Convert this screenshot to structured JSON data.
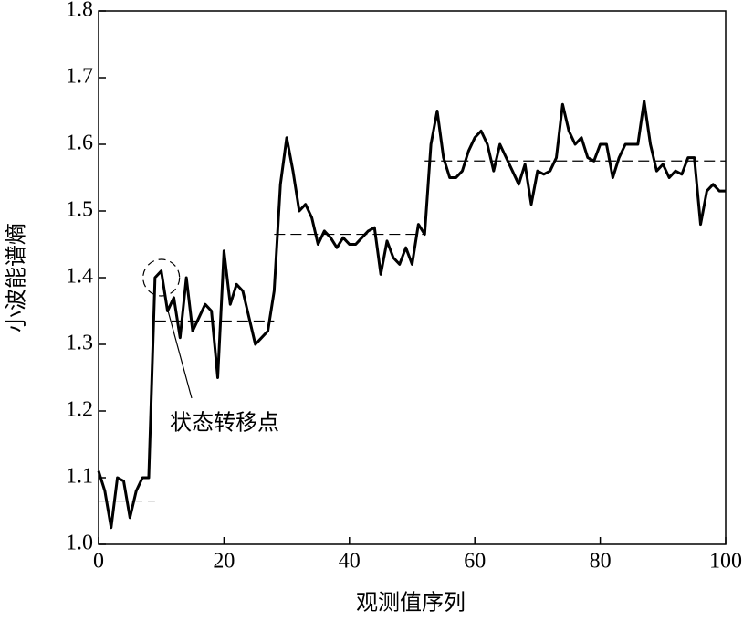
{
  "chart_data": {
    "type": "line",
    "x_label": "观测值序列",
    "y_label": "小波能谱熵",
    "x": [
      0,
      1,
      2,
      3,
      4,
      5,
      6,
      7,
      8,
      9,
      10,
      11,
      12,
      13,
      14,
      15,
      16,
      17,
      18,
      19,
      20,
      21,
      22,
      23,
      24,
      25,
      26,
      27,
      28,
      29,
      30,
      31,
      32,
      33,
      34,
      35,
      36,
      37,
      38,
      39,
      40,
      41,
      42,
      43,
      44,
      45,
      46,
      47,
      48,
      49,
      50,
      51,
      52,
      53,
      54,
      55,
      56,
      57,
      58,
      59,
      60,
      61,
      62,
      63,
      64,
      65,
      66,
      67,
      68,
      69,
      70,
      71,
      72,
      73,
      74,
      75,
      76,
      77,
      78,
      79,
      80,
      81,
      82,
      83,
      84,
      85,
      86,
      87,
      88,
      89,
      90,
      91,
      92,
      93,
      94,
      95,
      96,
      97,
      98,
      99,
      100
    ],
    "series": [
      {
        "color": "#000000",
        "values": [
          1.11,
          1.08,
          1.025,
          1.1,
          1.095,
          1.04,
          1.08,
          1.1,
          1.1,
          1.4,
          1.41,
          1.35,
          1.37,
          1.31,
          1.4,
          1.32,
          1.34,
          1.36,
          1.35,
          1.25,
          1.44,
          1.36,
          1.39,
          1.38,
          1.34,
          1.3,
          1.31,
          1.32,
          1.38,
          1.54,
          1.61,
          1.56,
          1.5,
          1.51,
          1.49,
          1.45,
          1.47,
          1.46,
          1.445,
          1.46,
          1.45,
          1.45,
          1.46,
          1.47,
          1.475,
          1.405,
          1.455,
          1.43,
          1.42,
          1.445,
          1.42,
          1.48,
          1.465,
          1.6,
          1.65,
          1.58,
          1.55,
          1.55,
          1.56,
          1.59,
          1.61,
          1.62,
          1.6,
          1.56,
          1.6,
          1.58,
          1.56,
          1.54,
          1.57,
          1.51,
          1.56,
          1.555,
          1.56,
          1.58,
          1.66,
          1.62,
          1.6,
          1.61,
          1.58,
          1.575,
          1.6,
          1.6,
          1.55,
          1.58,
          1.6,
          1.6,
          1.6,
          1.665,
          1.6,
          1.56,
          1.57,
          1.55,
          1.56,
          1.555,
          1.58,
          1.58,
          1.48,
          1.53,
          1.54,
          1.53,
          1.53
        ]
      }
    ],
    "mean_levels": [
      {
        "start": 0,
        "end": 9,
        "value": 1.065
      },
      {
        "start": 9,
        "end": 28,
        "value": 1.335
      },
      {
        "start": 28,
        "end": 52,
        "value": 1.465
      },
      {
        "start": 52,
        "end": 100,
        "value": 1.575
      }
    ],
    "annotation": {
      "text": "状态转移点",
      "x": 10,
      "y": 1.4
    },
    "xlim": [
      0,
      100
    ],
    "xticks": [
      0,
      20,
      40,
      60,
      80,
      100
    ],
    "ylim": [
      1,
      1.8
    ],
    "yticks": [
      {
        "value": 1,
        "label": "1.0"
      },
      1.1,
      1.2,
      1.3,
      1.4,
      1.5,
      1.6,
      1.7,
      1.8
    ]
  }
}
